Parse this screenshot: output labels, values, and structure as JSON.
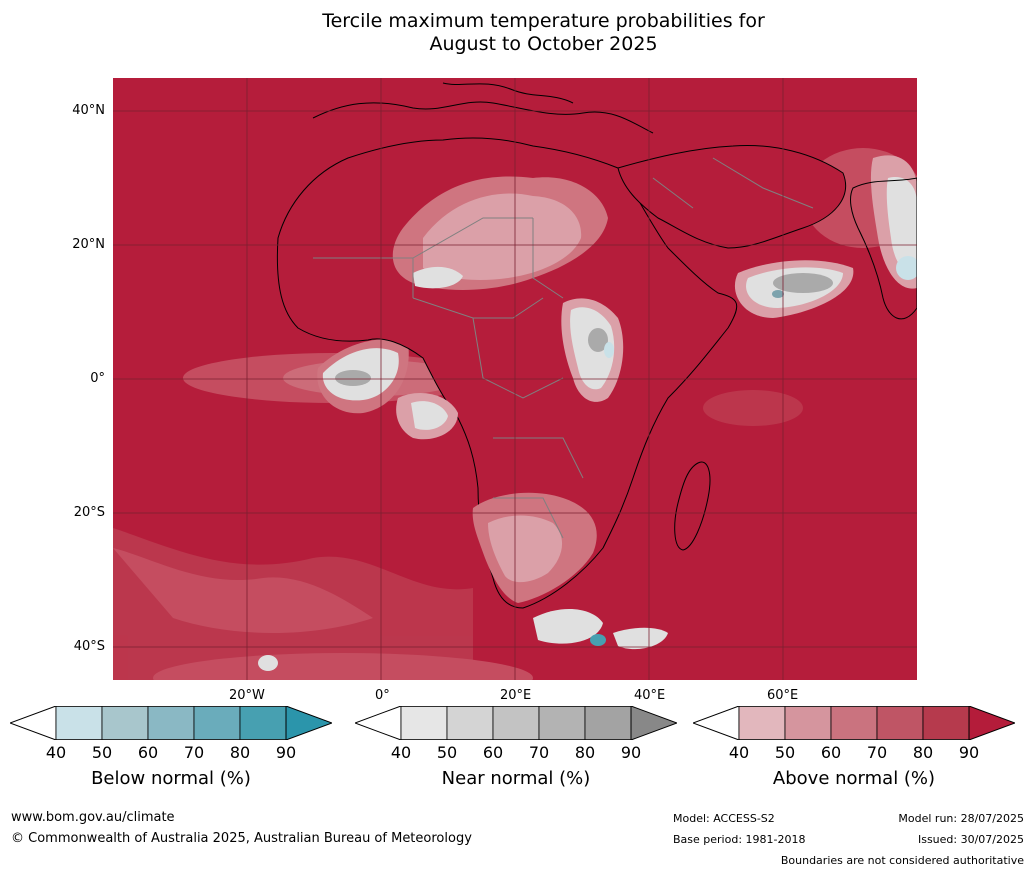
{
  "title": {
    "line1": "Tercile maximum temperature probabilities for",
    "line2": "August to October 2025"
  },
  "axes": {
    "lat_labels": [
      "40°N",
      "20°N",
      "0°",
      "20°S",
      "40°S"
    ],
    "lon_labels": [
      "20°W",
      "0°",
      "20°E",
      "40°E",
      "60°E"
    ]
  },
  "colorbars": [
    {
      "title": "Below normal (%)",
      "ticks": [
        "40",
        "50",
        "60",
        "70",
        "80",
        "90"
      ],
      "colors": [
        "#ffffff",
        "#c9e1e8",
        "#a8c6cc",
        "#8ab8c4",
        "#6aacbb",
        "#47a0b1",
        "#2b95ab"
      ]
    },
    {
      "title": "Near normal (%)",
      "ticks": [
        "40",
        "50",
        "60",
        "70",
        "80",
        "90"
      ],
      "colors": [
        "#ffffff",
        "#e6e6e6",
        "#d4d4d4",
        "#c3c3c3",
        "#b3b3b3",
        "#a3a3a3",
        "#888888"
      ]
    },
    {
      "title": "Above normal (%)",
      "ticks": [
        "40",
        "50",
        "60",
        "70",
        "80",
        "90"
      ],
      "colors": [
        "#ffffff",
        "#e2b7bd",
        "#d5959e",
        "#ca737f",
        "#bf5565",
        "#b63a4d",
        "#b41c3a"
      ]
    }
  ],
  "footer": {
    "website": "www.bom.gov.au/climate",
    "copyright": "© Commonwealth of Australia 2025, Australian Bureau of Meteorology",
    "model": "Model: ACCESS-S2",
    "base_period": "Base period: 1981-2018",
    "model_run": "Model run: 28/07/2025",
    "issued": "Issued: 30/07/2025",
    "disclaimer": "Boundaries are not considered authoritative"
  },
  "colors": {
    "above_90": "#b51d3b",
    "above_80": "#bc3a4f",
    "above_70": "#c75365",
    "above_60": "#cf7580",
    "above_50": "#dba0a8",
    "near": "#e0e0e0",
    "near_dark": "#aaaaaa",
    "below": "#c9e1e8",
    "land_outline": "#000000",
    "border": "#808080"
  }
}
